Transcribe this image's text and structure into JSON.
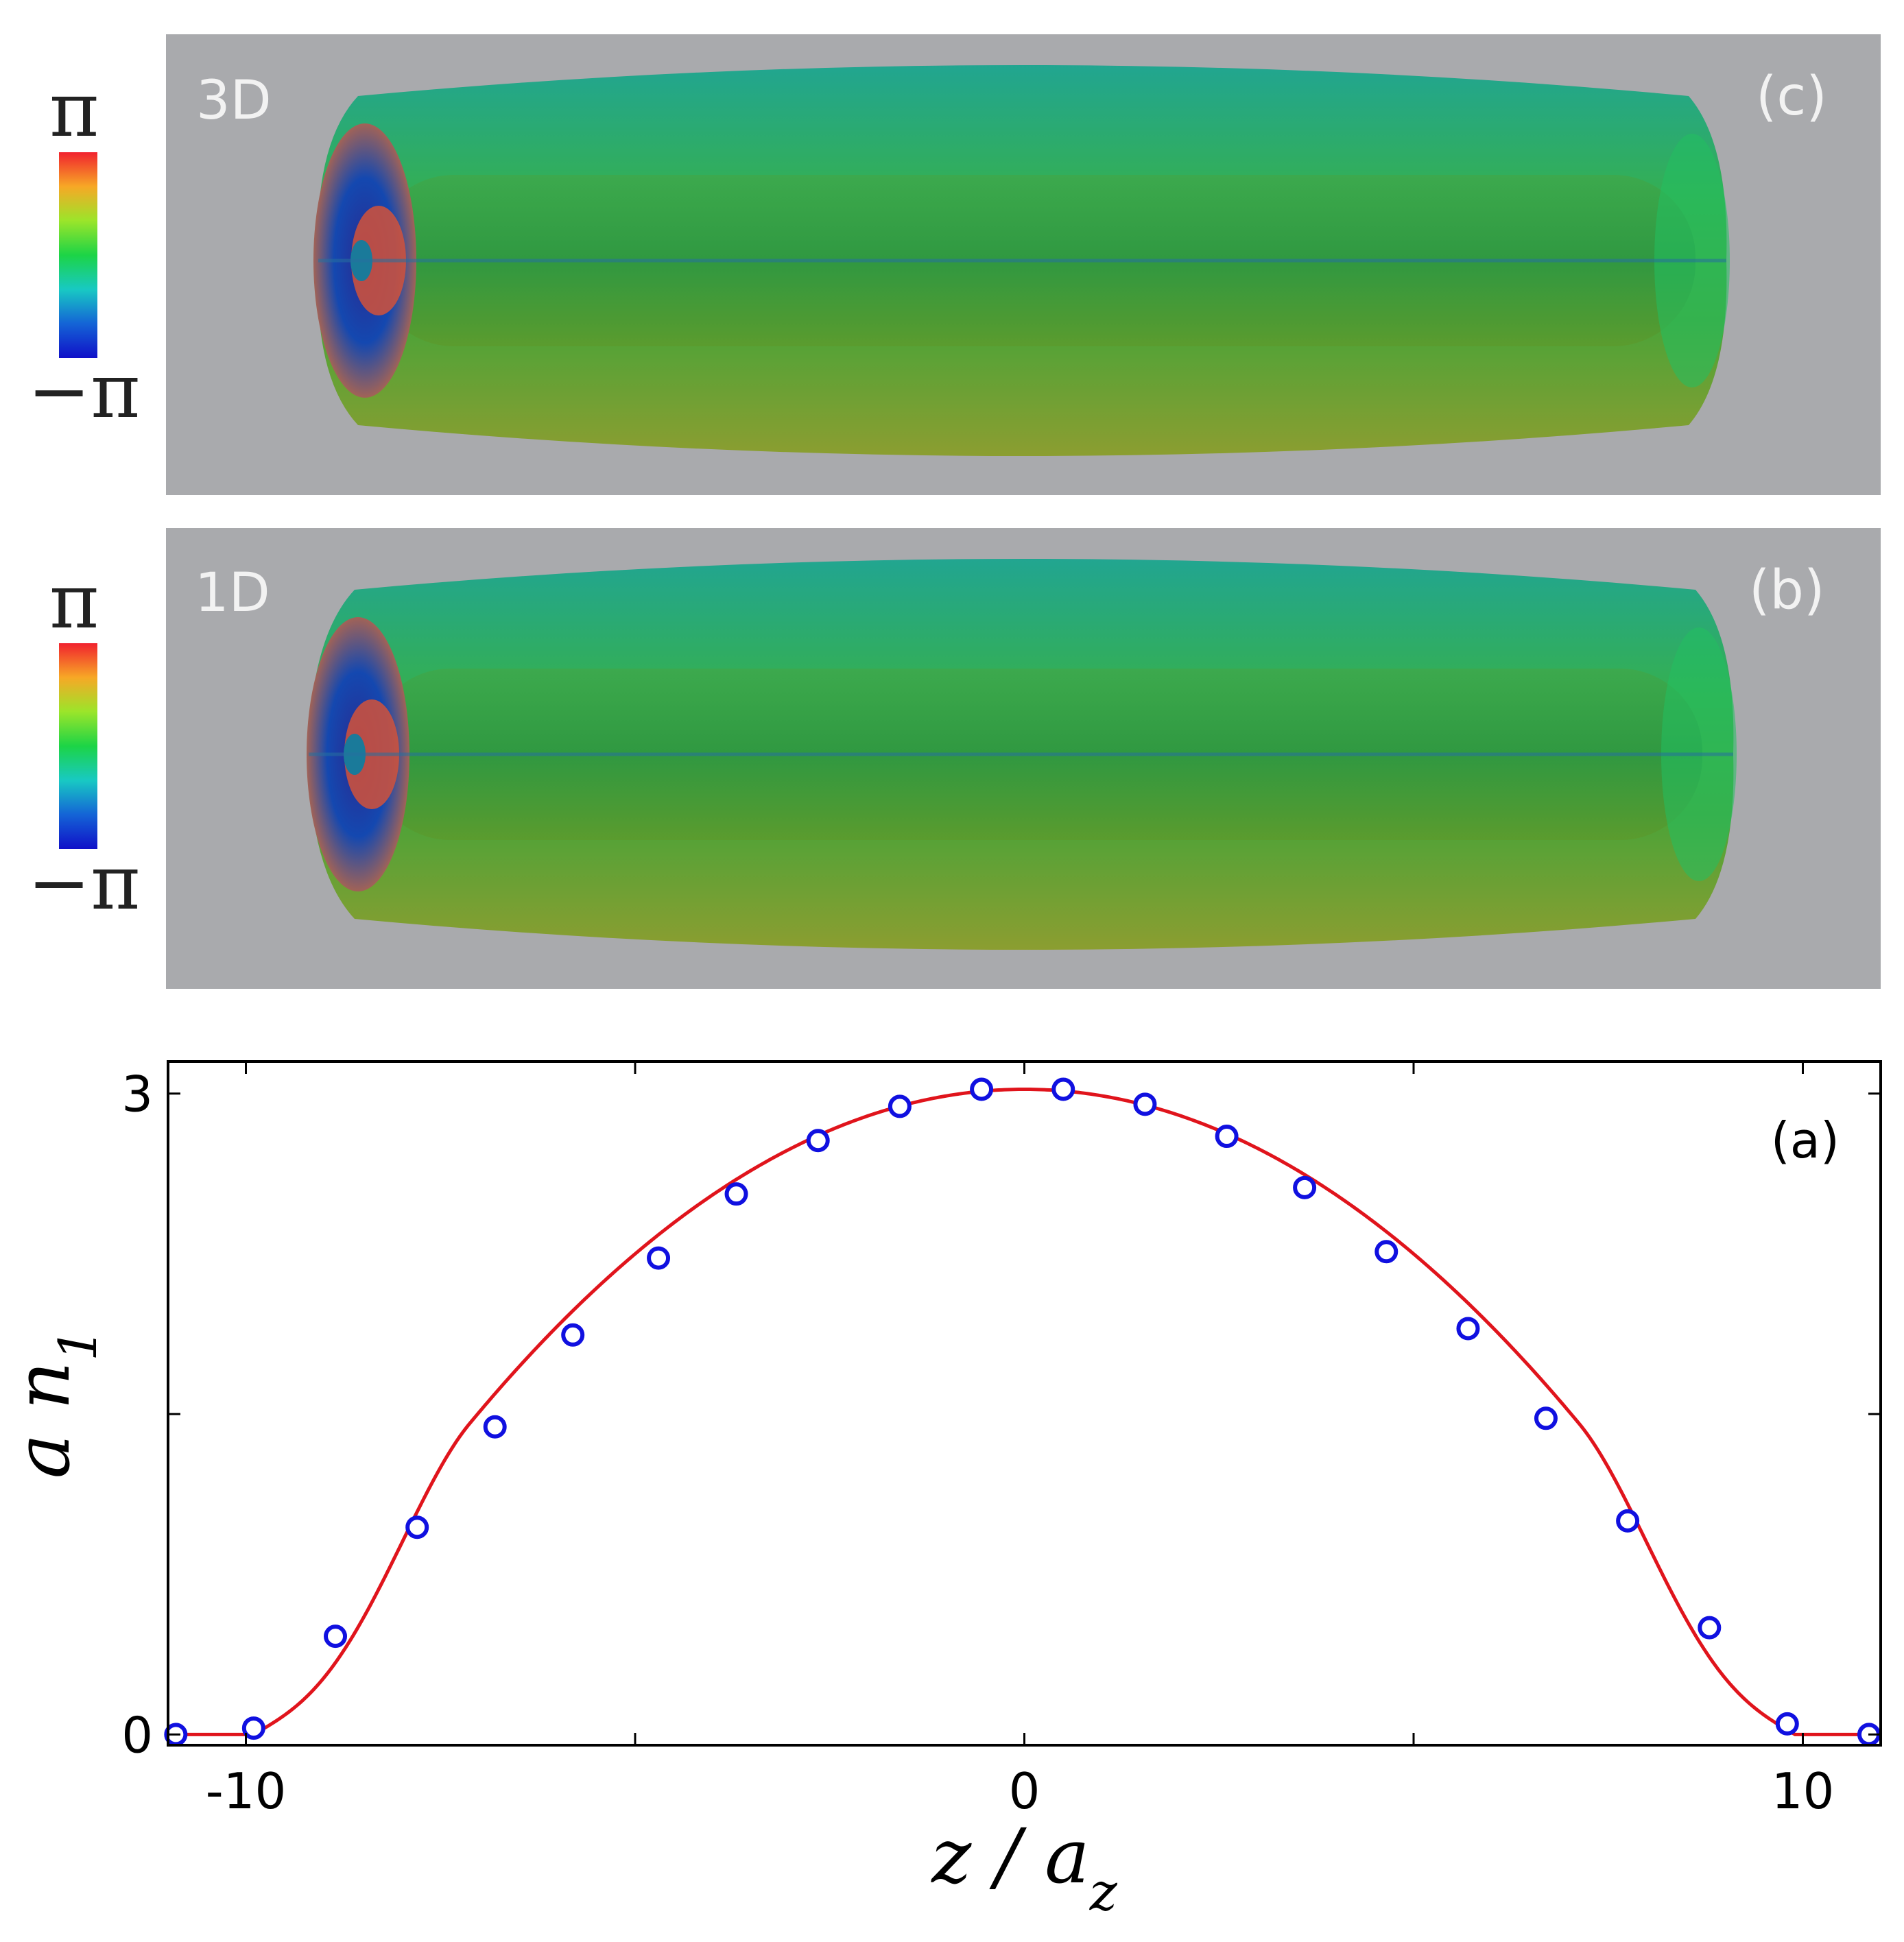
{
  "colorbar": {
    "top_label": "π",
    "bottom_label": "−π",
    "gradient": [
      "#f1222e",
      "#f7a826",
      "#9be52a",
      "#1cd446",
      "#18c9c3",
      "#1464d6",
      "#1010c8"
    ]
  },
  "panels": [
    {
      "id": "c",
      "dim_label": "3D",
      "panel_label": "(c)"
    },
    {
      "id": "b",
      "dim_label": "1D",
      "panel_label": "(b)"
    }
  ],
  "chart_data": {
    "type": "line",
    "panel_label": "(a)",
    "xlabel": "z / a",
    "xlabel_sub": "z",
    "ylabel": "a n",
    "ylabel_sub": "1",
    "xlim": [
      -11,
      11
    ],
    "ylim": [
      -0.05,
      3.15
    ],
    "x_tick_labels": [
      {
        "value": -10,
        "text": "-10"
      },
      {
        "value": 0,
        "text": "0"
      },
      {
        "value": 10,
        "text": "10"
      }
    ],
    "x_minor_ticks": [
      -5,
      5
    ],
    "y_tick_labels": [
      {
        "value": 0,
        "text": "0"
      },
      {
        "value": 3,
        "text": "3"
      }
    ],
    "y_minor_ticks": [
      1.5
    ],
    "colors": {
      "line": "#e0141c",
      "markers": "#1010e0"
    },
    "series": [
      {
        "style": "line",
        "zero_beyond": 9.9,
        "peak": 3.02
      },
      {
        "style": "markers",
        "x": [
          -10.9,
          -9.9,
          -8.85,
          -7.8,
          -6.8,
          -5.8,
          -4.7,
          -3.7,
          -2.65,
          -1.6,
          -0.55,
          0.5,
          1.55,
          2.6,
          3.6,
          4.65,
          5.7,
          6.7,
          7.75,
          8.8,
          9.8,
          10.85
        ],
        "y": [
          0.0,
          0.03,
          0.46,
          0.97,
          1.44,
          1.87,
          2.23,
          2.53,
          2.78,
          2.94,
          3.02,
          3.02,
          2.95,
          2.8,
          2.56,
          2.26,
          1.9,
          1.48,
          1.0,
          0.5,
          0.05,
          0.0
        ]
      }
    ]
  }
}
